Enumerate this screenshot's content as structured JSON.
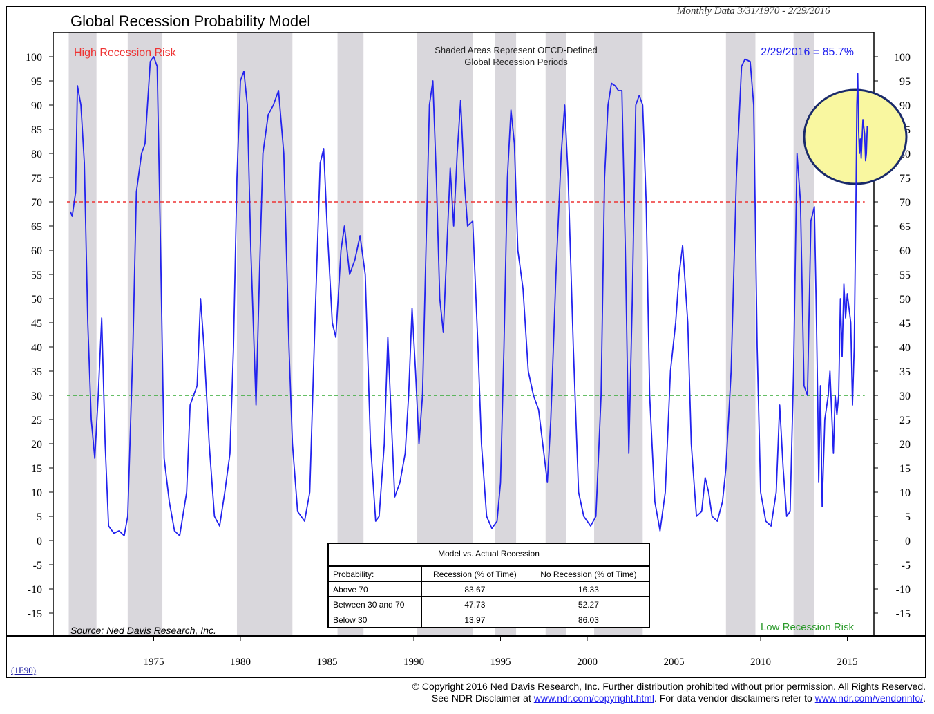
{
  "header": {
    "title": "Global Recession Probability Model",
    "subtitle": "Monthly Data 3/31/1970 - 2/29/2016"
  },
  "annotations": {
    "high_risk": "High Recession Risk",
    "low_risk": "Low Recession Risk",
    "shading_note_line1": "Shaded Areas Represent OECD-Defined",
    "shading_note_line2": "Global Recession Periods",
    "latest_value": "2/29/2016 = 85.7%",
    "source": "Source: Ned Davis Research, Inc."
  },
  "stats_table": {
    "title": "Model vs. Actual Recession",
    "headers": [
      "Probability:",
      "Recession (% of Time)",
      "No Recession (% of Time)"
    ],
    "rows": [
      [
        "Above 70",
        "83.67",
        "16.33"
      ],
      [
        "Between 30 and 70",
        "47.73",
        "52.27"
      ],
      [
        "Below 30",
        "13.97",
        "86.03"
      ]
    ]
  },
  "series_tag": "(1E90)",
  "footer": {
    "line1": "© Copyright 2016 Ned Davis Research, Inc.  Further distribution prohibited without prior permission.  All Rights Reserved.",
    "line2_a": "See NDR Disclaimer at ",
    "link1": "www.ndr.com/copyright.html",
    "line2_b": ". For data vendor disclaimers refer to ",
    "link2": "www.ndr.com/vendorinfo/",
    "line2_c": "."
  },
  "colors": {
    "line": "#2222ee",
    "high_threshold": "#ee3333",
    "low_threshold": "#33aa33",
    "shading": "#d9d7dc",
    "highlight": "#f9f7a0",
    "highlight_stroke": "#1a2a6a"
  },
  "chart_data": {
    "type": "line",
    "title": "Global Recession Probability Model",
    "ylim": [
      -20,
      105
    ],
    "xlim": [
      1970.0,
      2016.8
    ],
    "yticks": [
      100,
      95,
      90,
      85,
      80,
      75,
      70,
      65,
      60,
      55,
      50,
      45,
      40,
      35,
      30,
      25,
      20,
      15,
      10,
      5,
      0,
      -5,
      -10,
      -15
    ],
    "ytick_labels": [
      "100",
      "95",
      "90",
      "85",
      "80",
      "75",
      "70",
      "65",
      "60",
      "55",
      "50",
      "45",
      "40",
      "35",
      "30",
      "25",
      "20",
      "15",
      "10",
      "5",
      "0",
      "-5",
      "-10",
      "-15"
    ],
    "xticks": [
      1975,
      1980,
      1985,
      1990,
      1995,
      2000,
      2005,
      2010,
      2015
    ],
    "xtick_labels": [
      "1975",
      "1980",
      "1985",
      "1990",
      "1995",
      "2000",
      "2005",
      "2010",
      "2015"
    ],
    "thresholds": [
      {
        "value": 70,
        "color": "#ee3333",
        "style": "dashed"
      },
      {
        "value": 30,
        "color": "#33aa33",
        "style": "dashed"
      }
    ],
    "recession_periods": [
      [
        1970.1,
        1971.7
      ],
      [
        1973.5,
        1975.5
      ],
      [
        1979.8,
        1983.0
      ],
      [
        1985.6,
        1987.1
      ],
      [
        1990.2,
        1993.4
      ],
      [
        1994.7,
        1995.9
      ],
      [
        1997.6,
        1998.8
      ],
      [
        2000.4,
        2003.2
      ],
      [
        2008.0,
        2009.7
      ],
      [
        2011.9,
        2013.1
      ]
    ],
    "series": [
      {
        "values": [
          [
            1970.2,
            68
          ],
          [
            1970.3,
            67
          ],
          [
            1970.5,
            72
          ],
          [
            1970.6,
            94
          ],
          [
            1970.8,
            90
          ],
          [
            1971.0,
            78
          ],
          [
            1971.2,
            45
          ],
          [
            1971.4,
            25
          ],
          [
            1971.6,
            17
          ],
          [
            1971.8,
            30
          ],
          [
            1972.0,
            46
          ],
          [
            1972.2,
            20
          ],
          [
            1972.4,
            3
          ],
          [
            1972.7,
            1.5
          ],
          [
            1973.0,
            2
          ],
          [
            1973.3,
            1
          ],
          [
            1973.5,
            5
          ],
          [
            1973.8,
            40
          ],
          [
            1974.0,
            72
          ],
          [
            1974.3,
            80
          ],
          [
            1974.5,
            82
          ],
          [
            1974.8,
            99
          ],
          [
            1975.0,
            100
          ],
          [
            1975.2,
            98
          ],
          [
            1975.4,
            60
          ],
          [
            1975.6,
            17
          ],
          [
            1975.9,
            8
          ],
          [
            1976.2,
            2
          ],
          [
            1976.5,
            1
          ],
          [
            1976.9,
            10
          ],
          [
            1977.1,
            28
          ],
          [
            1977.3,
            30
          ],
          [
            1977.5,
            32
          ],
          [
            1977.7,
            50
          ],
          [
            1977.9,
            40
          ],
          [
            1978.2,
            20
          ],
          [
            1978.5,
            5
          ],
          [
            1978.8,
            3
          ],
          [
            1979.1,
            10
          ],
          [
            1979.4,
            18
          ],
          [
            1979.6,
            40
          ],
          [
            1979.8,
            75
          ],
          [
            1980.0,
            95
          ],
          [
            1980.2,
            97
          ],
          [
            1980.4,
            90
          ],
          [
            1980.6,
            60
          ],
          [
            1980.9,
            28
          ],
          [
            1981.1,
            55
          ],
          [
            1981.3,
            80
          ],
          [
            1981.6,
            88
          ],
          [
            1981.9,
            90
          ],
          [
            1982.2,
            93
          ],
          [
            1982.5,
            80
          ],
          [
            1982.8,
            40
          ],
          [
            1983.0,
            20
          ],
          [
            1983.3,
            6
          ],
          [
            1983.7,
            4
          ],
          [
            1984.0,
            10
          ],
          [
            1984.3,
            45
          ],
          [
            1984.6,
            78
          ],
          [
            1984.8,
            81
          ],
          [
            1985.0,
            65
          ],
          [
            1985.3,
            45
          ],
          [
            1985.5,
            42
          ],
          [
            1985.8,
            60
          ],
          [
            1986.0,
            65
          ],
          [
            1986.3,
            55
          ],
          [
            1986.6,
            58
          ],
          [
            1986.9,
            63
          ],
          [
            1987.2,
            55
          ],
          [
            1987.5,
            20
          ],
          [
            1987.8,
            4
          ],
          [
            1988.0,
            5
          ],
          [
            1988.3,
            20
          ],
          [
            1988.5,
            42
          ],
          [
            1988.7,
            25
          ],
          [
            1988.9,
            9
          ],
          [
            1989.2,
            12
          ],
          [
            1989.5,
            18
          ],
          [
            1989.7,
            30
          ],
          [
            1989.9,
            48
          ],
          [
            1990.1,
            35
          ],
          [
            1990.3,
            20
          ],
          [
            1990.5,
            30
          ],
          [
            1990.7,
            60
          ],
          [
            1990.9,
            90
          ],
          [
            1991.1,
            95
          ],
          [
            1991.3,
            75
          ],
          [
            1991.5,
            50
          ],
          [
            1991.7,
            43
          ],
          [
            1991.9,
            60
          ],
          [
            1992.1,
            77
          ],
          [
            1992.3,
            65
          ],
          [
            1992.5,
            80
          ],
          [
            1992.7,
            91
          ],
          [
            1992.9,
            75
          ],
          [
            1993.1,
            65
          ],
          [
            1993.4,
            66
          ],
          [
            1993.7,
            40
          ],
          [
            1993.9,
            20
          ],
          [
            1994.2,
            5
          ],
          [
            1994.5,
            2.5
          ],
          [
            1994.8,
            4
          ],
          [
            1995.0,
            12
          ],
          [
            1995.2,
            40
          ],
          [
            1995.4,
            75
          ],
          [
            1995.6,
            89
          ],
          [
            1995.8,
            82
          ],
          [
            1996.0,
            60
          ],
          [
            1996.3,
            52
          ],
          [
            1996.6,
            35
          ],
          [
            1996.9,
            30
          ],
          [
            1997.2,
            27
          ],
          [
            1997.5,
            18
          ],
          [
            1997.7,
            12
          ],
          [
            1997.9,
            25
          ],
          [
            1998.2,
            55
          ],
          [
            1998.5,
            80
          ],
          [
            1998.7,
            90
          ],
          [
            1998.9,
            75
          ],
          [
            1999.2,
            40
          ],
          [
            1999.5,
            10
          ],
          [
            1999.8,
            5
          ],
          [
            2000.2,
            3
          ],
          [
            2000.5,
            5
          ],
          [
            2000.8,
            30
          ],
          [
            2001.0,
            75
          ],
          [
            2001.2,
            90
          ],
          [
            2001.4,
            94.5
          ],
          [
            2001.6,
            94
          ],
          [
            2001.8,
            93
          ],
          [
            2002.0,
            93
          ],
          [
            2002.2,
            60
          ],
          [
            2002.4,
            18
          ],
          [
            2002.6,
            50
          ],
          [
            2002.8,
            90
          ],
          [
            2003.0,
            92
          ],
          [
            2003.2,
            90
          ],
          [
            2003.4,
            70
          ],
          [
            2003.6,
            30
          ],
          [
            2003.9,
            8
          ],
          [
            2004.2,
            2
          ],
          [
            2004.5,
            10
          ],
          [
            2004.8,
            35
          ],
          [
            2005.1,
            45
          ],
          [
            2005.3,
            55
          ],
          [
            2005.5,
            61
          ],
          [
            2005.8,
            45
          ],
          [
            2006.0,
            20
          ],
          [
            2006.3,
            5
          ],
          [
            2006.6,
            6
          ],
          [
            2006.8,
            13
          ],
          [
            2007.0,
            10
          ],
          [
            2007.2,
            5
          ],
          [
            2007.5,
            4
          ],
          [
            2007.8,
            8
          ],
          [
            2008.0,
            15
          ],
          [
            2008.3,
            35
          ],
          [
            2008.6,
            75
          ],
          [
            2008.9,
            98
          ],
          [
            2009.1,
            99.5
          ],
          [
            2009.4,
            99
          ],
          [
            2009.6,
            90
          ],
          [
            2009.8,
            40
          ],
          [
            2010.0,
            10
          ],
          [
            2010.3,
            4
          ],
          [
            2010.6,
            3
          ],
          [
            2010.9,
            10
          ],
          [
            2011.1,
            28
          ],
          [
            2011.3,
            15
          ],
          [
            2011.5,
            5
          ],
          [
            2011.7,
            6
          ],
          [
            2011.9,
            35
          ],
          [
            2012.1,
            80
          ],
          [
            2012.3,
            70
          ],
          [
            2012.5,
            32
          ],
          [
            2012.7,
            30
          ],
          [
            2012.9,
            66
          ],
          [
            2013.1,
            69
          ],
          [
            2013.2,
            50
          ],
          [
            2013.3,
            28
          ],
          [
            2013.35,
            12
          ],
          [
            2013.45,
            32
          ],
          [
            2013.55,
            7
          ],
          [
            2013.7,
            25
          ],
          [
            2013.9,
            30
          ],
          [
            2014.0,
            35
          ],
          [
            2014.2,
            18
          ],
          [
            2014.3,
            30
          ],
          [
            2014.4,
            26
          ],
          [
            2014.5,
            30
          ],
          [
            2014.6,
            50
          ],
          [
            2014.7,
            38
          ],
          [
            2014.8,
            53
          ],
          [
            2014.9,
            46
          ],
          [
            2015.0,
            51
          ],
          [
            2015.1,
            48
          ],
          [
            2015.2,
            45
          ],
          [
            2015.3,
            28
          ],
          [
            2015.4,
            40
          ],
          [
            2015.5,
            70
          ],
          [
            2015.55,
            90
          ],
          [
            2015.6,
            96.5
          ],
          [
            2015.65,
            85
          ],
          [
            2015.7,
            80
          ],
          [
            2015.75,
            83
          ],
          [
            2015.8,
            79
          ],
          [
            2015.9,
            87
          ],
          [
            2016.0,
            84
          ],
          [
            2016.05,
            78.5
          ],
          [
            2016.1,
            80
          ],
          [
            2016.15,
            85.7
          ]
        ]
      }
    ]
  }
}
